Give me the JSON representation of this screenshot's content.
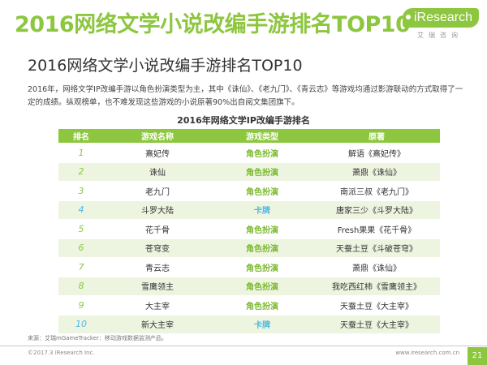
{
  "header": {
    "title": "2016网络文学小说改编手游排名TOP10",
    "brand_name": "iResearch",
    "brand_sub": "艾瑞咨询"
  },
  "subtitle": "2016网络文学小说改编手游排名TOP10",
  "description": "2016年，网络文学IP改编手游以角色扮演类型为主，其中《诛仙》、《老九门》、《青云志》等游戏均通过影游联动的方式取得了一定的成绩。纵观榜单，也不难发现这些游戏的小说原著90%出自阅文集团旗下。",
  "table": {
    "title": "2016年网络文学IP改编手游排名",
    "headers": {
      "rank": "排名",
      "name": "游戏名称",
      "type": "游戏类型",
      "original": "原著"
    },
    "rows": [
      {
        "rank": "1",
        "name": "熹妃传",
        "type": "角色扮演",
        "original": "解语《熹妃传》"
      },
      {
        "rank": "2",
        "name": "诛仙",
        "type": "角色扮演",
        "original": "萧鼎《诛仙》"
      },
      {
        "rank": "3",
        "name": "老九门",
        "type": "角色扮演",
        "original": "南派三叔《老九门》"
      },
      {
        "rank": "4",
        "name": "斗罗大陆",
        "type": "卡牌",
        "original": "唐家三少《斗罗大陆》"
      },
      {
        "rank": "5",
        "name": "花千骨",
        "type": "角色扮演",
        "original": "Fresh果果《花千骨》"
      },
      {
        "rank": "6",
        "name": "苍穹变",
        "type": "角色扮演",
        "original": "天蚕土豆《斗破苍穹》"
      },
      {
        "rank": "7",
        "name": "青云志",
        "type": "角色扮演",
        "original": "萧鼎《诛仙》"
      },
      {
        "rank": "8",
        "name": "雪鹰领主",
        "type": "角色扮演",
        "original": "我吃西红柿《雪鹰领主》"
      },
      {
        "rank": "9",
        "name": "大主宰",
        "type": "角色扮演",
        "original": "天蚕土豆《大主宰》"
      },
      {
        "rank": "10",
        "name": "新大主宰",
        "type": "卡牌",
        "original": "天蚕土豆《大主宰》"
      }
    ]
  },
  "footer": {
    "source": "来源：艾瑞mGameTracker：移动游戏数据监测产品。",
    "copyright": "©2017.3 iResearch Inc.",
    "site": "www.iresearch.com.cn",
    "page_number": "21"
  },
  "colors": {
    "accent_green": "#8dc63f",
    "card_blue": "#4fb8e0",
    "row_alt": "#edf5e1"
  }
}
